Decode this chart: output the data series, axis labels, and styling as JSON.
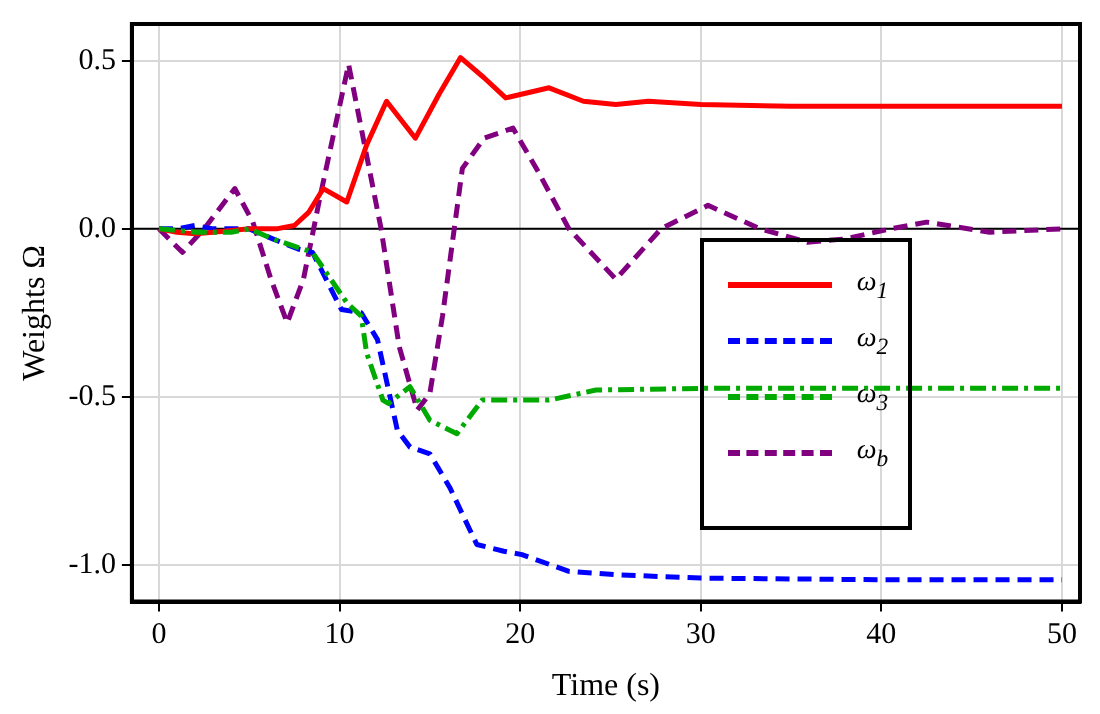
{
  "chart_data": {
    "type": "line",
    "xlabel": "Time (s)",
    "ylabel": "Weights Ω",
    "xlim": [
      -1.5,
      51
    ],
    "xticks": [
      0,
      10,
      20,
      30,
      40,
      50
    ],
    "ylim": [
      -1.11,
      0.61
    ],
    "yticks": [
      {
        "value": -1,
        "label": "-1.0"
      },
      {
        "value": -0.5,
        "label": "-0.5"
      },
      {
        "value": 0,
        "label": "0.0"
      },
      {
        "value": 0.5,
        "label": "0.5"
      }
    ],
    "grid": true,
    "legend": "right",
    "marker": "none",
    "ref_lines": [
      {
        "axis": "y",
        "value": 0,
        "color": "#000000"
      }
    ],
    "series": [
      {
        "name": "ω$_{1}$",
        "color": "#ff0000",
        "line_style": "solid",
        "x": [
          0,
          1,
          2,
          3,
          5,
          6.5,
          7.5,
          8.3,
          9.1,
          10.4,
          11.5,
          12.6,
          14.2,
          15.5,
          16.7,
          18,
          19.2,
          21.6,
          23.5,
          25.3,
          27.1,
          30,
          35,
          40,
          45,
          50
        ],
        "values": [
          0,
          -0.01,
          -0.015,
          -0.01,
          0,
          0,
          0.01,
          0.05,
          0.12,
          0.08,
          0.25,
          0.38,
          0.27,
          0.4,
          0.51,
          0.45,
          0.39,
          0.42,
          0.38,
          0.37,
          0.38,
          0.37,
          0.365,
          0.365,
          0.365,
          0.365
        ]
      },
      {
        "name": "ω$_{2}$",
        "color": "#0000ff",
        "line_style": "dashed",
        "x": [
          0,
          1,
          2,
          3,
          4,
          5,
          6.3,
          7.7,
          8.5,
          10.1,
          11.2,
          12.1,
          13.2,
          13.9,
          15,
          16.1,
          17.6,
          19.1,
          20.1,
          22.7,
          25.3,
          30,
          40,
          50
        ],
        "values": [
          0,
          0,
          0.01,
          0,
          0,
          0,
          -0.03,
          -0.06,
          -0.07,
          -0.24,
          -0.25,
          -0.33,
          -0.6,
          -0.65,
          -0.67,
          -0.77,
          -0.94,
          -0.96,
          -0.97,
          -1.02,
          -1.03,
          -1.04,
          -1.045,
          -1.045
        ]
      },
      {
        "name": "ω$_{3}$",
        "color": "#00aa00",
        "line_style": "dashdot",
        "x": [
          0,
          2,
          4,
          5,
          6.3,
          7.4,
          8.5,
          10.4,
          11.2,
          11.5,
          12.4,
          12.7,
          13.9,
          15,
          16.5,
          17.9,
          19.8,
          21.6,
          24.2,
          30,
          40,
          50
        ],
        "values": [
          0,
          -0.01,
          -0.01,
          0,
          -0.03,
          -0.05,
          -0.07,
          -0.22,
          -0.26,
          -0.37,
          -0.51,
          -0.52,
          -0.47,
          -0.57,
          -0.61,
          -0.51,
          -0.51,
          -0.51,
          -0.48,
          -0.475,
          -0.475,
          -0.475
        ]
      },
      {
        "name": "ω$_{b}$",
        "color": "#800080",
        "line_style": "dashed",
        "x": [
          0,
          1.3,
          2.5,
          4.2,
          5.2,
          6.2,
          7.1,
          8,
          8.9,
          10.5,
          12.3,
          13.3,
          14.3,
          15,
          15.7,
          16.8,
          18,
          19.6,
          21,
          22.7,
          25.3,
          27.8,
          30.4,
          33.3,
          35.9,
          38,
          40.5,
          42.5,
          46,
          50
        ],
        "values": [
          0,
          -0.07,
          0,
          0.12,
          0.02,
          -0.15,
          -0.28,
          -0.15,
          0.09,
          0.49,
          0,
          -0.35,
          -0.54,
          -0.49,
          -0.26,
          0.18,
          0.27,
          0.3,
          0.17,
          0,
          -0.15,
          0,
          0.07,
          0,
          -0.04,
          -0.03,
          0,
          0.02,
          -0.01,
          0
        ]
      }
    ]
  }
}
